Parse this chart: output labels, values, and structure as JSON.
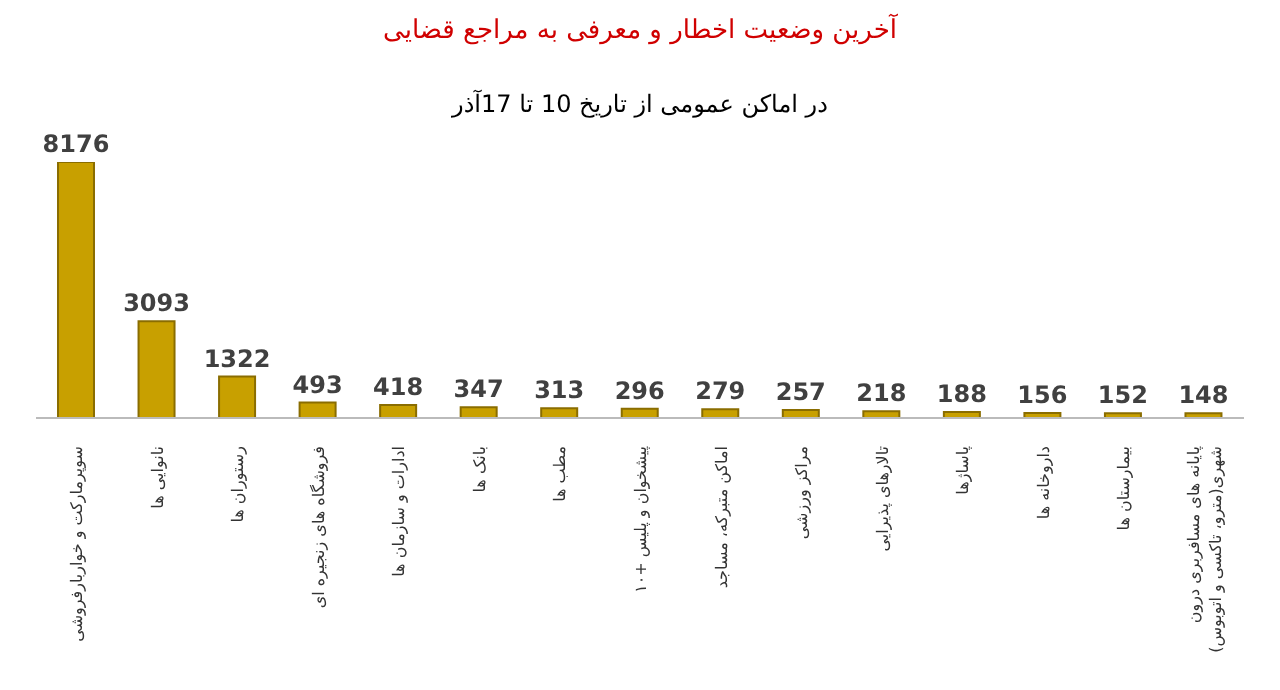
{
  "chart_data": {
    "type": "bar",
    "title": "آخرین وضعیت اخطار و معرفی به مراجع قضایی",
    "subtitle": "در اماکن عمومی از تاریخ 10 تا 17آذر",
    "categories": [
      "سوپرمارکت و خواربارفروشی",
      "نانوایی ها",
      "رستوران ها",
      "فروشگاه های زنجیره ای",
      "ادارات و سازمان ها",
      "بانک ها",
      "مطب ها",
      "پیشخوان و پلیس +۱۰",
      "اماکن متبرکه، مساجد",
      "مراکز ورزشی",
      "تالارهای پذیرایی",
      "پاساژها",
      "داروخانه ها",
      "بیمارستان ها",
      "پایانه های مسافربری درون شهری(مترو، تاکسی و اتوبوس)"
    ],
    "values": [
      8176,
      3093,
      1322,
      493,
      418,
      347,
      313,
      296,
      279,
      257,
      218,
      188,
      156,
      152,
      148
    ],
    "color": "#c8a000",
    "data_labels": true
  }
}
